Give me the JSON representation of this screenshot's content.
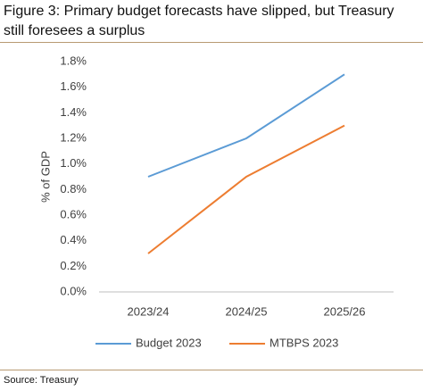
{
  "chart_data": {
    "type": "line",
    "title": "Figure 3:  Primary budget forecasts have slipped, but Treasury still foresees a surplus",
    "y_label": "% of GDP",
    "categories": [
      "2023/24",
      "2024/25",
      "2025/26"
    ],
    "series": [
      {
        "name": "Budget 2023",
        "color": "#5b9bd5",
        "values": [
          0.9,
          1.2,
          1.7
        ]
      },
      {
        "name": "MTBPS 2023",
        "color": "#ed7d31",
        "values": [
          0.3,
          0.9,
          1.3
        ]
      }
    ],
    "ylim": [
      0,
      1.8
    ],
    "yticks": [
      {
        "value": 0,
        "label": "0.0%"
      },
      {
        "value": 0.2,
        "label": "0.2%"
      },
      {
        "value": 0.4,
        "label": "0.4%"
      },
      {
        "value": 0.6,
        "label": "0.6%"
      },
      {
        "value": 0.8,
        "label": "0.8%"
      },
      {
        "value": 1.0,
        "label": "1.0%"
      },
      {
        "value": 1.2,
        "label": "1.2%"
      },
      {
        "value": 1.4,
        "label": "1.4%"
      },
      {
        "value": 1.6,
        "label": "1.6%"
      },
      {
        "value": 1.8,
        "label": "1.8%"
      }
    ],
    "grid": false,
    "legend": "bottom",
    "source": "Source: Treasury"
  }
}
